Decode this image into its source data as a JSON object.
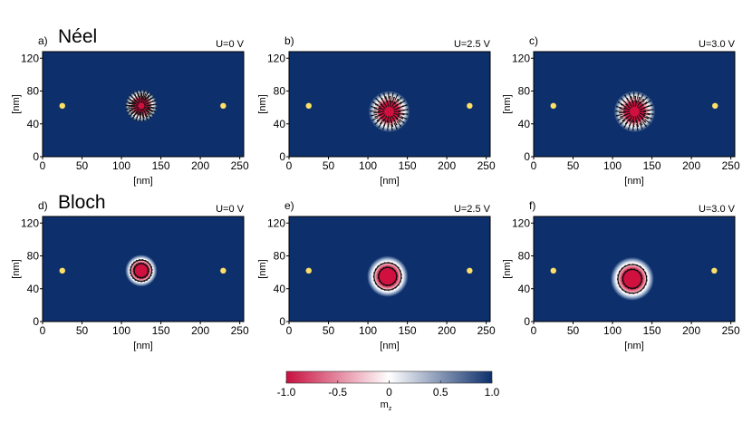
{
  "rows": [
    {
      "title": "Néel",
      "type": "neel"
    },
    {
      "title": "Bloch",
      "type": "bloch"
    }
  ],
  "chart_data": [
    {
      "type": "heatmap",
      "panel_label": "a)",
      "voltage_label": "U=0 V",
      "skyrmion": {
        "type": "neel",
        "center": [
          125,
          62
        ],
        "radius": 14
      },
      "dots": [
        [
          25,
          62
        ],
        [
          229,
          62
        ]
      ],
      "xlabel": "[nm]",
      "ylabel": "[nm]",
      "xlim": [
        0,
        255
      ],
      "ylim": [
        0,
        128
      ],
      "xticks": [
        "0",
        "50",
        "100",
        "150",
        "200",
        "250"
      ],
      "yticks": [
        "0",
        "40",
        "80",
        "120"
      ]
    },
    {
      "type": "heatmap",
      "panel_label": "b)",
      "voltage_label": "U=2.5 V",
      "skyrmion": {
        "type": "neel",
        "center": [
          127,
          55
        ],
        "radius": 18
      },
      "dots": [
        [
          25,
          62
        ],
        [
          229,
          62
        ]
      ],
      "xlabel": "[nm]",
      "ylabel": "[nm]",
      "xlim": [
        0,
        255
      ],
      "ylim": [
        0,
        128
      ],
      "xticks": [
        "0",
        "50",
        "100",
        "150",
        "200",
        "250"
      ],
      "yticks": [
        "0",
        "40",
        "80",
        "120"
      ]
    },
    {
      "type": "heatmap",
      "panel_label": "c)",
      "voltage_label": "U=3.0 V",
      "skyrmion": {
        "type": "neel",
        "center": [
          128,
          55
        ],
        "radius": 18
      },
      "dots": [
        [
          25,
          62
        ],
        [
          230,
          62
        ]
      ],
      "xlabel": "[nm]",
      "ylabel": "[nm]",
      "xlim": [
        0,
        255
      ],
      "ylim": [
        0,
        128
      ],
      "xticks": [
        "0",
        "50",
        "100",
        "150",
        "200",
        "250"
      ],
      "yticks": [
        "0",
        "40",
        "80",
        "120"
      ]
    },
    {
      "type": "heatmap",
      "panel_label": "d)",
      "voltage_label": "U=0 V",
      "skyrmion": {
        "type": "bloch",
        "center": [
          125,
          62
        ],
        "radius": 14
      },
      "dots": [
        [
          25,
          62
        ],
        [
          229,
          62
        ]
      ],
      "xlabel": "[nm]",
      "ylabel": "[nm]",
      "xlim": [
        0,
        255
      ],
      "ylim": [
        0,
        128
      ],
      "xticks": [
        "0",
        "50",
        "100",
        "150",
        "200",
        "250"
      ],
      "yticks": [
        "0",
        "40",
        "80",
        "120"
      ]
    },
    {
      "type": "heatmap",
      "panel_label": "e)",
      "voltage_label": "U=2.5 V",
      "skyrmion": {
        "type": "bloch",
        "center": [
          125,
          55
        ],
        "radius": 18
      },
      "dots": [
        [
          25,
          62
        ],
        [
          229,
          62
        ]
      ],
      "xlabel": "[nm]",
      "ylabel": "[nm]",
      "xlim": [
        0,
        255
      ],
      "ylim": [
        0,
        128
      ],
      "xticks": [
        "0",
        "50",
        "100",
        "150",
        "200",
        "250"
      ],
      "yticks": [
        "0",
        "40",
        "80",
        "120"
      ]
    },
    {
      "type": "heatmap",
      "panel_label": "f)",
      "voltage_label": "U=3.0 V",
      "skyrmion": {
        "type": "bloch",
        "center": [
          125,
          52
        ],
        "radius": 19
      },
      "dots": [
        [
          25,
          62
        ],
        [
          229,
          62
        ]
      ],
      "xlabel": "[nm]",
      "ylabel": "[nm]",
      "xlim": [
        0,
        255
      ],
      "ylim": [
        0,
        128
      ],
      "xticks": [
        "0",
        "50",
        "100",
        "150",
        "200",
        "250"
      ],
      "yticks": [
        "0",
        "40",
        "80",
        "120"
      ]
    }
  ],
  "colorbar": {
    "label": "m",
    "label_subscript": "z",
    "ticks": [
      "-1.0",
      "-0.5",
      "0",
      "0.5",
      "1.0"
    ],
    "range": [
      -1.0,
      1.0
    ],
    "colors": [
      "#c8103f",
      "#ffffff",
      "#0d2f6b"
    ]
  },
  "colors": {
    "background_blue": "#0d2f6b",
    "core_red": "#d0103f",
    "dot_yellow": "#ffe066",
    "arrow": "#111111"
  }
}
